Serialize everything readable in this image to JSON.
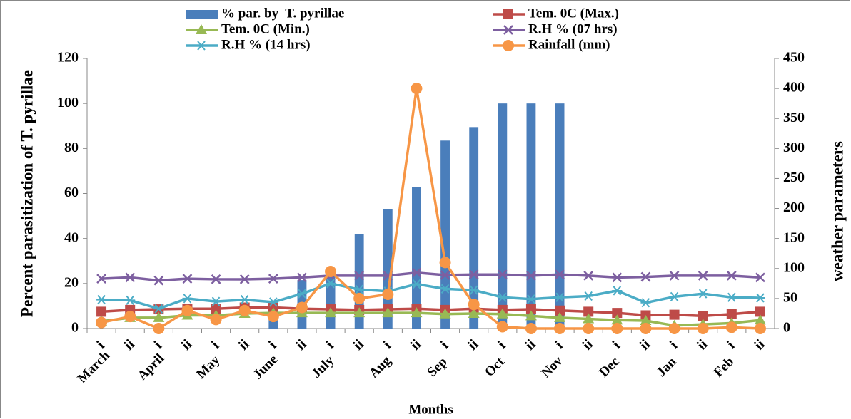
{
  "chart_data": {
    "type": "bar-line",
    "categories": [
      "i",
      "ii",
      "i",
      "ii",
      "i",
      "ii",
      "i",
      "ii",
      "i",
      "ii",
      "i",
      "ii",
      "i",
      "ii",
      "i",
      "ii",
      "i",
      "ii",
      "i",
      "ii",
      "i",
      "ii",
      "i",
      "ii"
    ],
    "months": [
      "March",
      "April",
      "May",
      "June",
      "July",
      "Aug",
      "Sep",
      "Oct",
      "Nov",
      "Dec",
      "Jan",
      "Feb"
    ],
    "xlabel": "Months",
    "ylabel": "Percent parasitization of T. pyrillae",
    "y2label": "weather parameters",
    "ylim": [
      0,
      120
    ],
    "yticks": [
      0,
      20,
      40,
      60,
      80,
      100,
      120
    ],
    "y2lim": [
      0,
      450
    ],
    "y2ticks": [
      0,
      50,
      100,
      150,
      200,
      250,
      300,
      350,
      400,
      450
    ],
    "series": [
      {
        "name": "% par. by  T. pyrillae",
        "type": "bar",
        "color": "#4a7ebb",
        "values": [
          0,
          0,
          0,
          0,
          0,
          0,
          5,
          21.5,
          25,
          42,
          53,
          63,
          83.5,
          89.5,
          100,
          100,
          100,
          0,
          0,
          0,
          0,
          0,
          0,
          0
        ]
      },
      {
        "name": "Tem. 0C (Max.)",
        "type": "line",
        "axis": "y2",
        "marker": "square",
        "color": "#be4b48",
        "values": [
          28,
          31,
          32,
          33,
          33,
          35,
          35,
          33,
          32,
          31,
          32,
          33,
          31,
          33,
          31,
          32,
          30,
          28,
          26,
          22,
          23,
          21,
          24,
          28
        ]
      },
      {
        "name": "Tem. 0C (Min.)",
        "type": "line",
        "axis": "y2",
        "marker": "triangle",
        "color": "#98b954",
        "values": [
          12,
          18,
          18,
          22,
          22,
          25,
          26,
          26,
          26,
          26,
          26,
          26,
          24,
          25,
          24,
          21,
          18,
          16,
          14,
          13,
          5,
          7,
          9,
          14
        ]
      },
      {
        "name": "R.H % (07 hrs)",
        "type": "line",
        "axis": "y2",
        "marker": "x",
        "color": "#7d5fa0",
        "values": [
          83,
          85,
          80,
          83,
          82,
          82,
          83,
          85,
          88,
          88,
          88,
          93,
          89,
          90,
          90,
          88,
          90,
          88,
          85,
          86,
          88,
          88,
          88,
          85
        ]
      },
      {
        "name": "R.H % (14 hrs)",
        "type": "line",
        "axis": "y2",
        "marker": "star",
        "color": "#4bacc6",
        "values": [
          48,
          47,
          33,
          50,
          45,
          48,
          44,
          58,
          75,
          65,
          62,
          74,
          66,
          64,
          52,
          49,
          52,
          54,
          63,
          43,
          53,
          58,
          52,
          51
        ]
      },
      {
        "name": "Rainfall (mm)",
        "type": "line",
        "axis": "y2",
        "marker": "circle",
        "color": "#f79646",
        "values": [
          10,
          20,
          0,
          30,
          15,
          30,
          20,
          35,
          95,
          50,
          57,
          400,
          110,
          40,
          3,
          0,
          0,
          0,
          0,
          0,
          0,
          0,
          2,
          0
        ]
      }
    ]
  }
}
